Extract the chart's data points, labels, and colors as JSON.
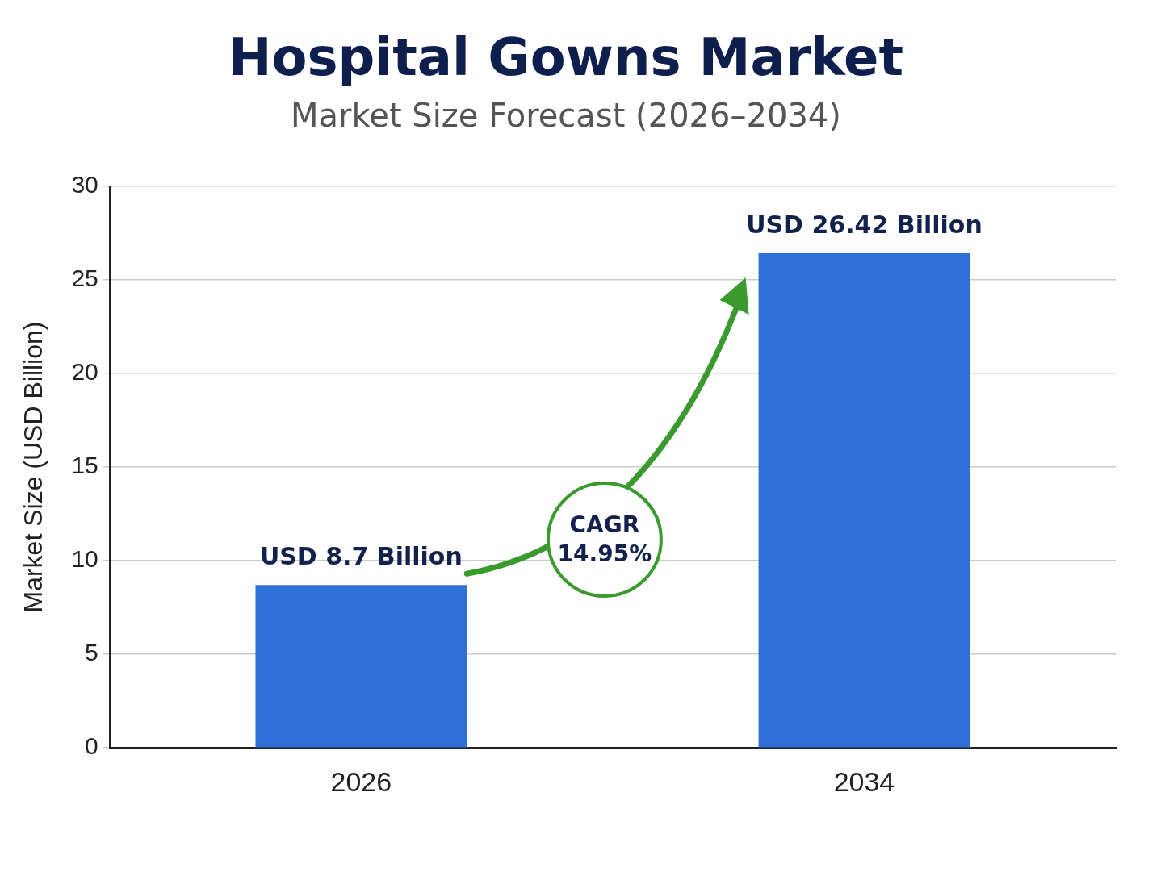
{
  "chart_data": {
    "type": "bar",
    "title": "Hospital Gowns Market",
    "subtitle": "Market Size Forecast (2026–2034)",
    "ylabel": "Market Size (USD Billion)",
    "categories": [
      "2026",
      "2034"
    ],
    "values": [
      8.7,
      26.42
    ],
    "color": "#2f6fd8",
    "value_labels": [
      "USD 8.7 Billion",
      "USD 26.42 Billion"
    ],
    "ylim": [
      0,
      30
    ],
    "yticks": [
      0,
      5,
      10,
      15,
      20,
      25,
      30
    ],
    "grid": "y",
    "annotations": [
      "CAGR 14.95%"
    ]
  }
}
